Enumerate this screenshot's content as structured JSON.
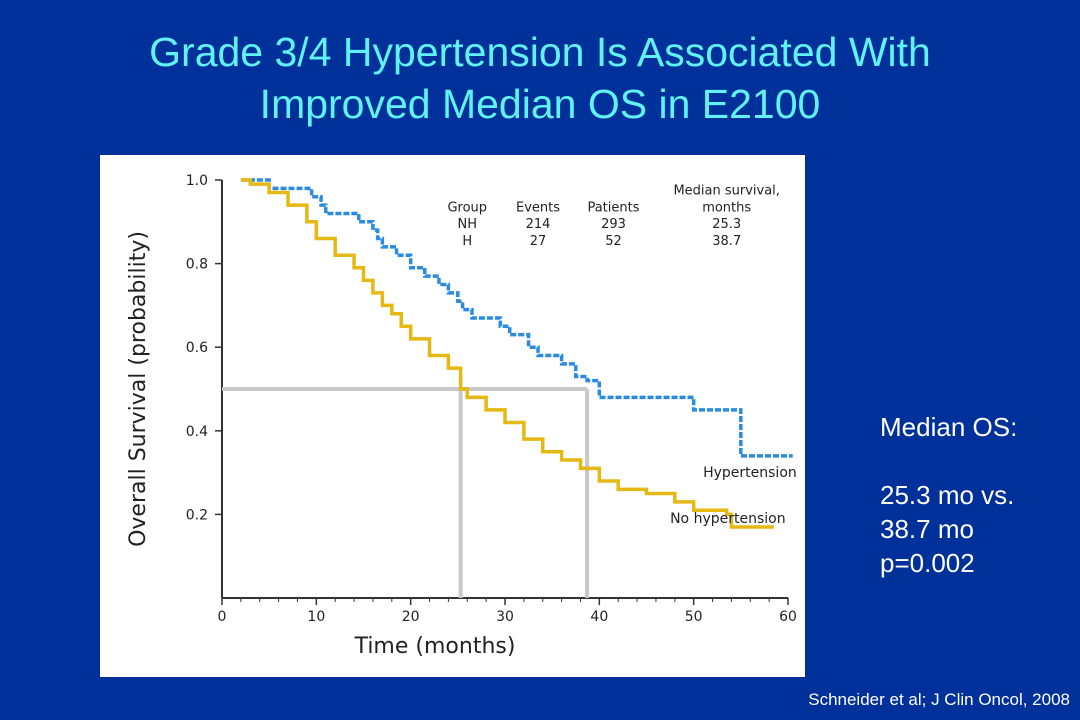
{
  "slide": {
    "title_line1": "Grade 3/4 Hypertension Is Associated With",
    "title_line2": "Improved Median OS in E2100",
    "median_label": "Median OS:",
    "median_values": [
      "25.3 mo vs.",
      "38.7 mo",
      "p=0.002"
    ],
    "source": "Schneider et al; J Clin Oncol, 2008"
  },
  "chart_data": {
    "type": "line",
    "step": true,
    "xlabel": "Time (months)",
    "ylabel": "Overall Survival (probability)",
    "xlim": [
      0,
      60
    ],
    "ylim": [
      0,
      1.0
    ],
    "x_ticks": [
      "0",
      "10",
      "20",
      "30",
      "40",
      "50",
      "60"
    ],
    "y_ticks": [
      "1.0",
      "0.8",
      "0.6",
      "0.4",
      "0.2"
    ],
    "table": {
      "headers": [
        "Group",
        "Events",
        "Patients",
        "Median survival,\nmonths"
      ],
      "header_top": [
        "Median survival,"
      ],
      "header_sub": [
        "Group",
        "Events",
        "Patients",
        "months"
      ],
      "rows": [
        [
          "NH",
          "214",
          "293",
          "25.3"
        ],
        [
          "H",
          "27",
          "52",
          "38.7"
        ]
      ]
    },
    "series": [
      {
        "name": "Hypertension",
        "color": "#2a8be0",
        "x": [
          2,
          5,
          7,
          9.5,
          10.5,
          11,
          12.5,
          14.5,
          16,
          16.5,
          17,
          18.5,
          20,
          21.5,
          23,
          24,
          25,
          25.5,
          26.5,
          27.5,
          29.5,
          30.5,
          32.5,
          33.5,
          36,
          37.5,
          38.7,
          40,
          49.5,
          50,
          55,
          60.5
        ],
        "y": [
          1.0,
          0.98,
          0.98,
          0.96,
          0.94,
          0.92,
          0.92,
          0.9,
          0.88,
          0.86,
          0.84,
          0.82,
          0.79,
          0.77,
          0.75,
          0.73,
          0.71,
          0.69,
          0.67,
          0.67,
          0.65,
          0.63,
          0.6,
          0.58,
          0.56,
          0.53,
          0.52,
          0.48,
          0.48,
          0.45,
          0.34,
          0.34
        ]
      },
      {
        "name": "No hypertension",
        "color": "#e5b814",
        "x": [
          2,
          3,
          5,
          7,
          9,
          10,
          12,
          14,
          15,
          16,
          17,
          18,
          19,
          20,
          22,
          24,
          25.3,
          26,
          28,
          30,
          32,
          34,
          36,
          38,
          40,
          42,
          45,
          48,
          50,
          52,
          53.5,
          54,
          58.5
        ],
        "y": [
          1.0,
          0.99,
          0.97,
          0.94,
          0.9,
          0.86,
          0.82,
          0.79,
          0.76,
          0.73,
          0.7,
          0.68,
          0.65,
          0.62,
          0.58,
          0.55,
          0.5,
          0.48,
          0.45,
          0.42,
          0.38,
          0.35,
          0.33,
          0.31,
          0.28,
          0.26,
          0.25,
          0.23,
          0.21,
          0.21,
          0.2,
          0.17,
          0.17
        ]
      }
    ],
    "median_line": {
      "y": 0.5,
      "x": [
        25.3,
        38.7
      ],
      "color": "#c8c8c8"
    },
    "annotations": [
      "Hypertension",
      "No hypertension"
    ],
    "grid": false
  }
}
